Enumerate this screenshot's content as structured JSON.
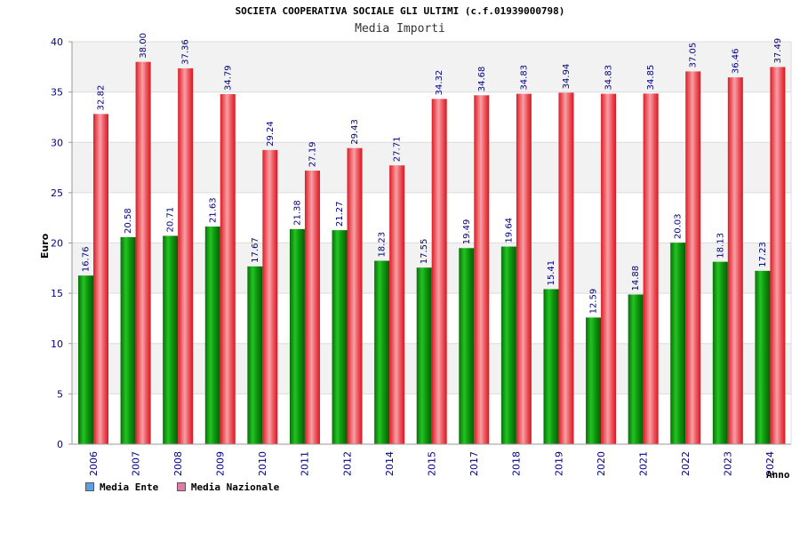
{
  "title": "SOCIETA COOPERATIVA SOCIALE GLI ULTIMI (c.f.01939000798)",
  "subtitle": "Media Importi",
  "chart_data": {
    "type": "bar",
    "title": "SOCIETA COOPERATIVA SOCIALE GLI ULTIMI (c.f.01939000798)",
    "subtitle": "Media Importi",
    "xlabel": "Anno",
    "ylabel": "Euro",
    "ylim": [
      0,
      40
    ],
    "yticks": [
      "0",
      "5",
      "10",
      "15",
      "20",
      "25",
      "30",
      "35",
      "40"
    ],
    "categories": [
      "2006",
      "2007",
      "2008",
      "2009",
      "2010",
      "2011",
      "2012",
      "2014",
      "2015",
      "2017",
      "2018",
      "2019",
      "2020",
      "2021",
      "2022",
      "2023",
      "2024"
    ],
    "series": [
      {
        "name": "Media Ente",
        "color": "#16a316",
        "values": [
          16.76,
          20.58,
          20.71,
          21.63,
          17.67,
          21.38,
          21.27,
          18.23,
          17.55,
          19.49,
          19.64,
          15.41,
          12.59,
          14.88,
          20.03,
          18.13,
          17.23
        ]
      },
      {
        "name": "Media Nazionale",
        "color": "#e8303a",
        "values": [
          32.82,
          38.0,
          37.36,
          34.79,
          29.24,
          27.19,
          29.43,
          27.71,
          34.32,
          34.68,
          34.83,
          34.94,
          34.83,
          34.85,
          37.05,
          36.46,
          37.49
        ]
      }
    ],
    "labels_ente": [
      "16.76",
      "20.58",
      "20.71",
      "21.63",
      "17.67",
      "21.38",
      "21.27",
      "18.23",
      "17.55",
      "19.49",
      "19.64",
      "15.41",
      "12.59",
      "14.88",
      "20.03",
      "18.13",
      "17.23"
    ],
    "labels_nazionale": [
      "32.82",
      "38.00",
      "37.36",
      "34.79",
      "29.24",
      "27.19",
      "29.43",
      "27.71",
      "34.32",
      "34.68",
      "34.83",
      "34.94",
      "34.83",
      "34.85",
      "37.05",
      "36.46",
      "37.49"
    ],
    "grid": true,
    "legend_position": "bottom-left"
  },
  "legend": {
    "ente_label": "Media Ente",
    "ente_color": "#5aa0e6",
    "nazionale_label": "Media Nazionale",
    "nazionale_color": "#e07aa8"
  }
}
